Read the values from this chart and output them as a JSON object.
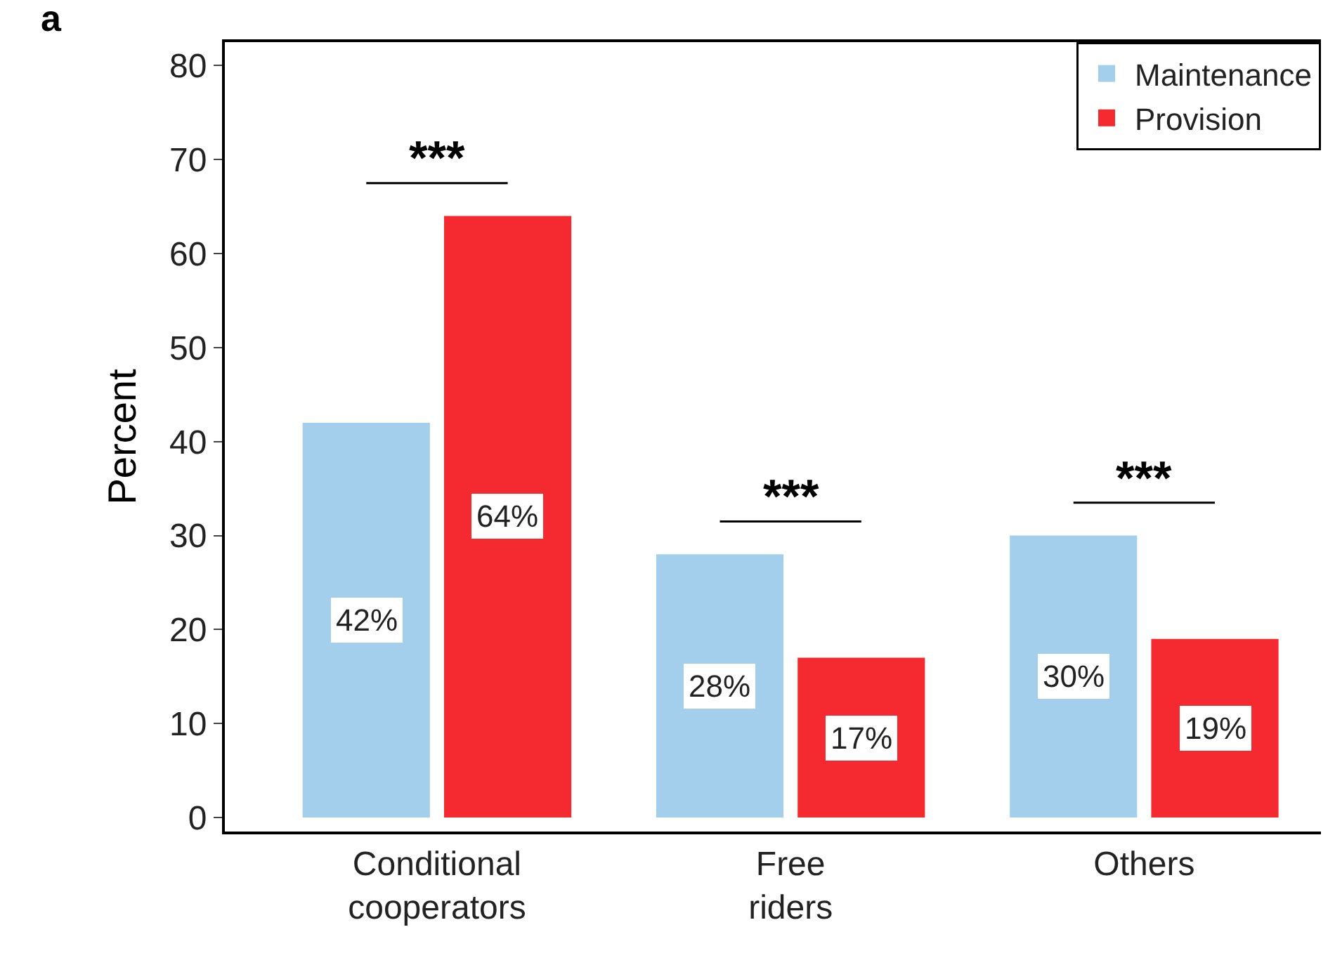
{
  "chart_data": {
    "type": "bar",
    "ylabel": "Percent",
    "categories": [
      "Conditional\ncooperators",
      "Free\nriders",
      "Others"
    ],
    "series": [
      {
        "name": "Maintenance",
        "color": "#a3cfec",
        "values": [
          42,
          28,
          30
        ],
        "value_labels": [
          "42%",
          "28%",
          "30%"
        ]
      },
      {
        "name": "Provision",
        "color": "#f42a30",
        "values": [
          64,
          17,
          19
        ],
        "value_labels": [
          "64%",
          "17%",
          "19%"
        ]
      }
    ],
    "ylim": [
      -1.5,
      82.5
    ],
    "yticks": [
      0,
      10,
      20,
      30,
      40,
      50,
      60,
      70,
      80
    ],
    "annotations": [
      "a",
      "***",
      "***",
      "***"
    ],
    "legend": "top right"
  }
}
